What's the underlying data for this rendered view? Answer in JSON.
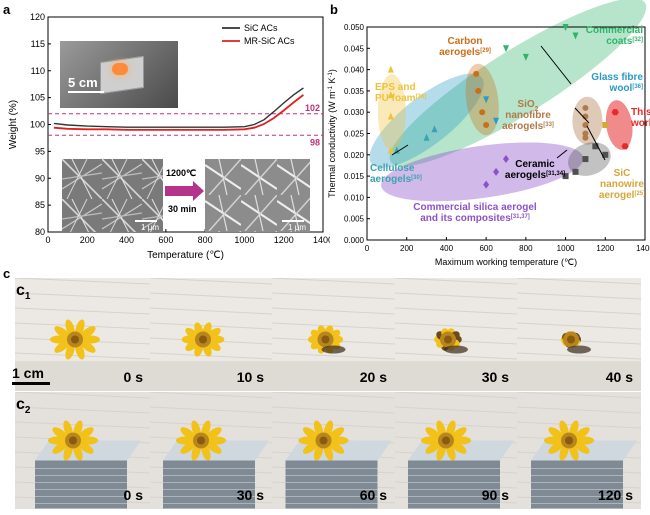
{
  "panel_labels": {
    "a": "a",
    "b": "b",
    "c": "c"
  },
  "panel_a": {
    "inset_scale": "5 cm",
    "sem_scale_left": "1 μm",
    "sem_scale_right": "1 μm",
    "arrow_top": "1200℃",
    "arrow_bottom": "30 min",
    "ref_label_upper": "102",
    "ref_label_lower": "98",
    "colors": {
      "sic": "#333333",
      "mr": "#e02020",
      "ref": "#c0307a",
      "arrow": "#b5338a"
    }
  },
  "panel_b": {
    "colors": {
      "eps": "#f0c23a",
      "carbon": "#c86f1a",
      "commercial_coats": "#2fb56a",
      "glass": "#2a9ac6",
      "sio2": "#b07a4a",
      "this_work": "#e62a2a",
      "sic_nano": "#d6a63a",
      "ceramic": "#505050",
      "cellulose": "#3aa2b2",
      "silica": "#8c52c8"
    }
  },
  "panel_c": {
    "row1_label": "c",
    "row1_sub": "1",
    "row2_label": "c",
    "row2_sub": "2",
    "scale_label": "1 cm",
    "row1_times": [
      "0 s",
      "10 s",
      "20 s",
      "30 s",
      "40 s"
    ],
    "row2_times": [
      "0 s",
      "30 s",
      "60 s",
      "90 s",
      "120 s"
    ]
  },
  "chart_data": [
    {
      "type": "line",
      "xlabel": "Temperature (℃)",
      "ylabel": "Weight (%)",
      "xlim": [
        0,
        1400
      ],
      "ylim": [
        80,
        120
      ],
      "xticks": [
        "0",
        "200",
        "400",
        "600",
        "800",
        "1000",
        "1200",
        "1400"
      ],
      "yticks": [
        "80",
        "85",
        "90",
        "95",
        "100",
        "105",
        "110",
        "115",
        "120"
      ],
      "legend_position": "top-right",
      "reference_lines": [
        102,
        98
      ],
      "series": [
        {
          "name": "SiC ACs",
          "color": "#333333",
          "x": [
            30,
            100,
            200,
            300,
            400,
            500,
            600,
            700,
            800,
            900,
            1000,
            1050,
            1100,
            1150,
            1200,
            1250,
            1300
          ],
          "y": [
            100.2,
            99.9,
            99.7,
            99.6,
            99.5,
            99.5,
            99.5,
            99.5,
            99.5,
            99.5,
            99.6,
            100.0,
            100.9,
            102.4,
            104.0,
            105.5,
            106.8
          ]
        },
        {
          "name": "MR-SiC ACs",
          "color": "#e02020",
          "x": [
            30,
            100,
            200,
            300,
            400,
            500,
            600,
            700,
            800,
            900,
            1000,
            1050,
            1100,
            1150,
            1200,
            1250,
            1300
          ],
          "y": [
            99.4,
            99.2,
            99.1,
            99.1,
            99.0,
            99.0,
            99.0,
            99.0,
            99.0,
            99.0,
            99.1,
            99.4,
            100.1,
            101.2,
            102.6,
            104.1,
            105.5
          ]
        }
      ]
    },
    {
      "type": "scatter",
      "xlabel": "Maximum working temperature (℃)",
      "ylabel": "Thermal conductivity (W m⁻¹ K⁻¹)",
      "ylabel_base": "Thermal conductivity (W m",
      "ylabel_exp1": "-1",
      "ylabel_mid": " K",
      "ylabel_exp2": "-1",
      "ylabel_end": ")",
      "xlim": [
        0,
        1400
      ],
      "ylim": [
        0,
        0.05
      ],
      "xticks": [
        "0",
        "200",
        "400",
        "600",
        "800",
        "1000",
        "1200",
        "1400"
      ],
      "yticks": [
        "0.000",
        "0.005",
        "0.010",
        "0.015",
        "0.020",
        "0.025",
        "0.030",
        "0.035",
        "0.040",
        "0.045",
        "0.050"
      ],
      "series": [
        {
          "label": "EPS and",
          "label2": "PU foam",
          "ref": "[36]",
          "color": "#f0c23a",
          "marker": "triangle",
          "points": [
            [
              120,
              0.04
            ],
            [
              120,
              0.034
            ],
            [
              120,
              0.029
            ],
            [
              120,
              0.021
            ]
          ]
        },
        {
          "label": "Carbon",
          "label2": "aerogels",
          "ref": "[29]",
          "color": "#c86f1a",
          "marker": "circle",
          "points": [
            [
              550,
              0.039
            ],
            [
              560,
              0.035
            ],
            [
              580,
              0.03
            ],
            [
              600,
              0.027
            ]
          ]
        },
        {
          "label": "Commercial",
          "label2": "coats",
          "ref": "[32]",
          "color": "#2fb56a",
          "marker": "triangle-down",
          "points": [
            [
              700,
              0.045
            ],
            [
              800,
              0.043
            ],
            [
              1050,
              0.048
            ],
            [
              1000,
              0.05
            ]
          ]
        },
        {
          "label": "Glass fibre",
          "label2": "wool",
          "ref": "[36]",
          "color": "#2a9ac6",
          "marker": "triangle-down",
          "points": [
            [
              600,
              0.033
            ],
            [
              650,
              0.028
            ]
          ]
        },
        {
          "label": "SiO",
          "label_sub": "2",
          "label2": "nanofibre",
          "label3": "aerogels",
          "ref": "[33]",
          "color": "#b07a4a",
          "marker": "circle",
          "points": [
            [
              1100,
              0.031
            ],
            [
              1100,
              0.029
            ],
            [
              1100,
              0.027
            ],
            [
              1100,
              0.025
            ],
            [
              1100,
              0.024
            ]
          ]
        },
        {
          "label": "This",
          "label2": "work",
          "ref": "",
          "color": "#e62a2a",
          "marker": "hexagon",
          "points": [
            [
              1250,
              0.03
            ],
            [
              1300,
              0.022
            ]
          ]
        },
        {
          "label": "SiC",
          "label2": "nanowire",
          "label3": "aerogel",
          "ref": "[25]",
          "color": "#d6a63a",
          "marker": "square",
          "points": [
            [
              1200,
              0.027
            ]
          ]
        },
        {
          "label": "Ceramic",
          "label2": "aerogels",
          "ref": "[31,34]",
          "color": "#505050",
          "marker": "square",
          "points": [
            [
              1050,
              0.016
            ],
            [
              1100,
              0.019
            ],
            [
              1150,
              0.022
            ],
            [
              1200,
              0.02
            ],
            [
              1000,
              0.015
            ]
          ]
        },
        {
          "label": "Cellulose",
          "label2": "aerogels",
          "ref": "[30]",
          "color": "#3aa2b2",
          "marker": "triangle",
          "points": [
            [
              150,
              0.021
            ],
            [
              300,
              0.024
            ],
            [
              340,
              0.026
            ]
          ]
        },
        {
          "label": "Commercial silica aerogel",
          "label2": "and its composites",
          "ref": "[31,37]",
          "color": "#8c52c8",
          "marker": "diamond",
          "points": [
            [
              600,
              0.013
            ],
            [
              650,
              0.016
            ],
            [
              700,
              0.019
            ]
          ]
        }
      ]
    }
  ]
}
